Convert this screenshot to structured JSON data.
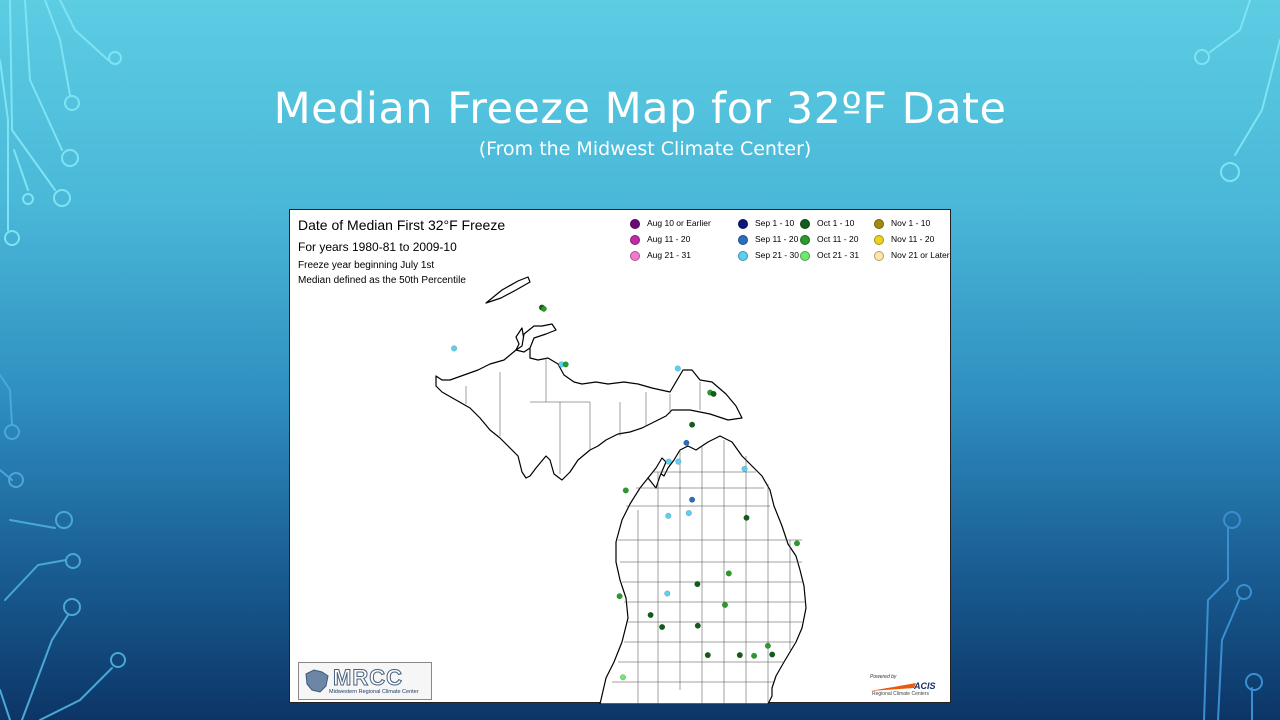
{
  "slide": {
    "title": "Median Freeze Map for 32ºF Date",
    "subtitle": "(From the Midwest Climate Center)"
  },
  "map": {
    "title": "Date of Median First 32°F Freeze",
    "subtitle": "For years 1980-81 to 2009-10",
    "note1": "Freeze year beginning July 1st",
    "note2": "Median defined as the 50th Percentile",
    "legend": [
      {
        "label": "Aug 10 or Earlier",
        "color": "#6a0a78"
      },
      {
        "label": "Aug 11 - 20",
        "color": "#c02aa8"
      },
      {
        "label": "Aug 21 - 31",
        "color": "#f07ad0"
      },
      {
        "label": "Sep 1 - 10",
        "color": "#0a1a7a"
      },
      {
        "label": "Sep 11 - 20",
        "color": "#2a6ec0"
      },
      {
        "label": "Sep 21 - 30",
        "color": "#5cd0f0"
      },
      {
        "label": "Oct 1 - 10",
        "color": "#0e5e1a"
      },
      {
        "label": "Oct 11 - 20",
        "color": "#2a9a2a"
      },
      {
        "label": "Oct 21 - 31",
        "color": "#6ee86e"
      },
      {
        "label": "Nov 1 - 10",
        "color": "#a08a10"
      },
      {
        "label": "Nov 11 - 20",
        "color": "#ecd21e"
      },
      {
        "label": "Nov 21 or Later",
        "color": "#fbe6a6"
      }
    ],
    "stations": [
      {
        "c": 6,
        "lon": -87.88,
        "lat": 47.47
      },
      {
        "c": 7,
        "lon": -87.84,
        "lat": 47.45
      },
      {
        "c": 5,
        "lon": -89.72,
        "lat": 46.86
      },
      {
        "c": 5,
        "lon": -87.47,
        "lat": 46.62
      },
      {
        "c": 7,
        "lon": -87.38,
        "lat": 46.62
      },
      {
        "c": 5,
        "lon": -85.03,
        "lat": 46.56
      },
      {
        "c": 7,
        "lon": -84.35,
        "lat": 46.2
      },
      {
        "c": 6,
        "lon": -84.28,
        "lat": 46.18
      },
      {
        "c": 6,
        "lon": -84.73,
        "lat": 45.72
      },
      {
        "c": 4,
        "lon": -84.85,
        "lat": 45.45
      },
      {
        "c": 5,
        "lon": -85.22,
        "lat": 45.17
      },
      {
        "c": 5,
        "lon": -85.02,
        "lat": 45.17
      },
      {
        "c": 5,
        "lon": -83.63,
        "lat": 45.06
      },
      {
        "c": 7,
        "lon": -86.12,
        "lat": 44.74
      },
      {
        "c": 4,
        "lon": -84.73,
        "lat": 44.6
      },
      {
        "c": 5,
        "lon": -85.23,
        "lat": 44.36
      },
      {
        "c": 5,
        "lon": -84.8,
        "lat": 44.4
      },
      {
        "c": 6,
        "lon": -83.59,
        "lat": 44.33
      },
      {
        "c": 7,
        "lon": -82.53,
        "lat": 43.95
      },
      {
        "c": 7,
        "lon": -83.96,
        "lat": 43.5
      },
      {
        "c": 6,
        "lon": -84.62,
        "lat": 43.34
      },
      {
        "c": 5,
        "lon": -85.25,
        "lat": 43.2
      },
      {
        "c": 7,
        "lon": -86.25,
        "lat": 43.16
      },
      {
        "c": 7,
        "lon": -84.04,
        "lat": 43.03
      },
      {
        "c": 6,
        "lon": -85.6,
        "lat": 42.88
      },
      {
        "c": 6,
        "lon": -85.36,
        "lat": 42.7
      },
      {
        "c": 6,
        "lon": -84.61,
        "lat": 42.72
      },
      {
        "c": 7,
        "lon": -83.14,
        "lat": 42.42
      },
      {
        "c": 6,
        "lon": -84.4,
        "lat": 42.28
      },
      {
        "c": 6,
        "lon": -83.73,
        "lat": 42.28
      },
      {
        "c": 7,
        "lon": -83.43,
        "lat": 42.27
      },
      {
        "c": 6,
        "lon": -83.05,
        "lat": 42.29
      },
      {
        "c": 8,
        "lon": -86.18,
        "lat": 41.95
      }
    ],
    "logo_text": "MRCC",
    "logo_sub": "Midwestern Regional Climate Center",
    "acis_powered": "Powered by",
    "acis_name": "ACIS",
    "acis_sub": "Regional Climate Centers"
  }
}
